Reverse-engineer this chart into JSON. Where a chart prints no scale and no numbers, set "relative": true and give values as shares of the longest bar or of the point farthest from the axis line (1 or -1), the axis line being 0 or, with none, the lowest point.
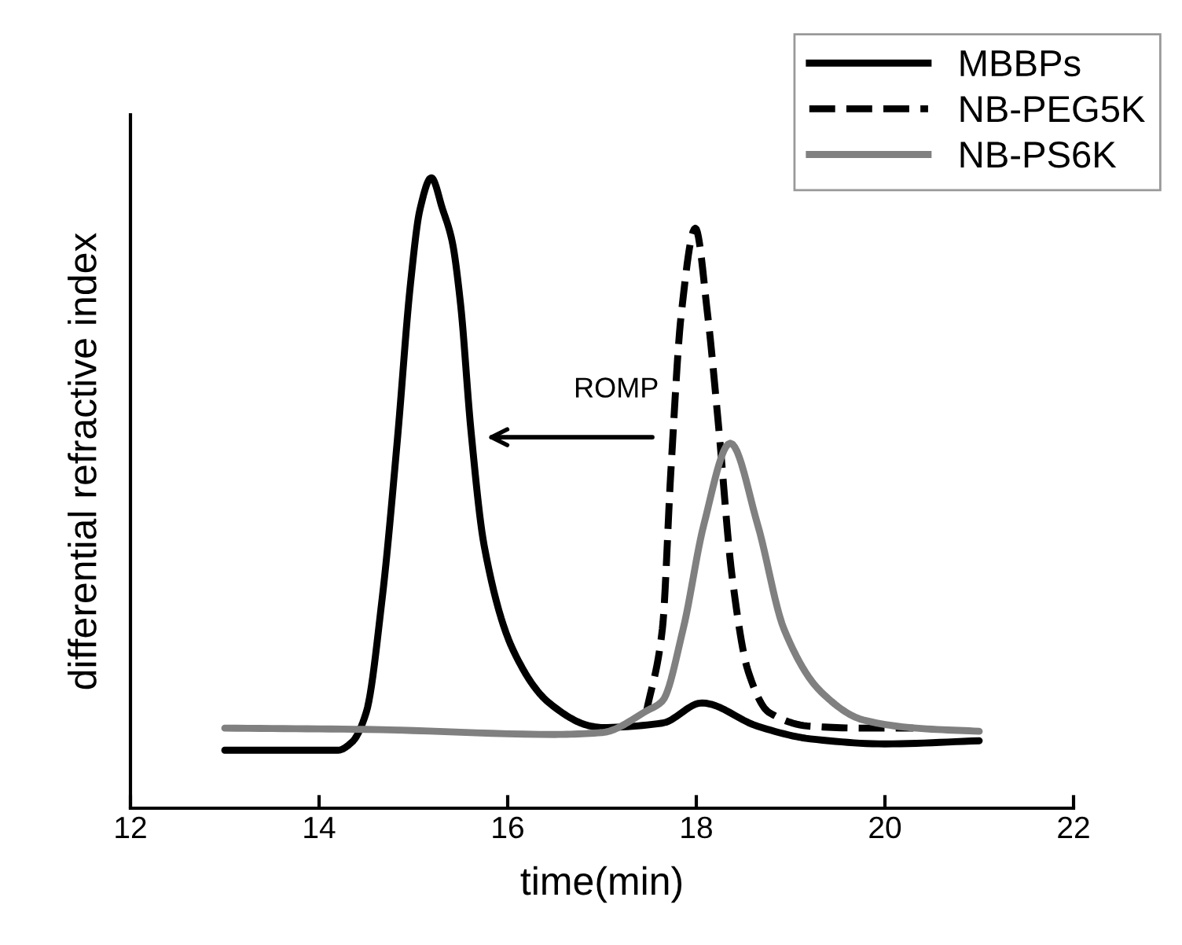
{
  "chart_data": {
    "type": "line",
    "relative": true,
    "xlabel": "time(min)",
    "ylabel": "differential refractive index",
    "xlim": [
      12,
      22
    ],
    "xticks": [
      12,
      14,
      16,
      18,
      20,
      22
    ],
    "legend": "top right",
    "grid": false,
    "annotations": [
      "ROMP"
    ],
    "series": [
      {
        "name": "MBBPs",
        "color": "#000000",
        "line_style": "solid",
        "x": [
          13,
          14.2,
          14.35,
          14.5,
          14.67,
          14.83,
          14.97,
          15.07,
          15.19,
          15.31,
          15.41,
          15.5,
          15.61,
          15.75,
          16.06,
          16.44,
          16.89,
          17.0,
          17.64,
          18.06,
          18.65,
          19.21,
          20.0,
          21.0
        ],
        "values": [
          0.092,
          0.092,
          0.105,
          0.152,
          0.334,
          0.584,
          0.833,
          0.95,
          1.0,
          0.95,
          0.9,
          0.8,
          0.6,
          0.417,
          0.25,
          0.167,
          0.13,
          0.128,
          0.135,
          0.167,
          0.13,
          0.11,
          0.102,
          0.107
        ]
      },
      {
        "name": "NB-PEG5K",
        "color": "#000000",
        "line_style": "dashed",
        "x": [
          17.47,
          17.64,
          17.73,
          17.84,
          17.99,
          18.12,
          18.23,
          18.38,
          18.55,
          18.77,
          19.21,
          19.77,
          20.3
        ],
        "values": [
          0.152,
          0.284,
          0.534,
          0.783,
          0.92,
          0.783,
          0.616,
          0.367,
          0.217,
          0.152,
          0.13,
          0.127,
          0.127
        ]
      },
      {
        "name": "NB-PS6K",
        "color": "#808080",
        "line_style": "solid",
        "x": [
          13,
          14.5,
          16.5,
          17.0,
          17.48,
          17.64,
          17.86,
          18.08,
          18.36,
          18.65,
          18.93,
          19.32,
          19.77,
          20.33,
          21.0
        ],
        "values": [
          0.127,
          0.125,
          0.117,
          0.12,
          0.155,
          0.17,
          0.284,
          0.45,
          0.579,
          0.45,
          0.284,
          0.185,
          0.14,
          0.127,
          0.122
        ]
      }
    ]
  }
}
